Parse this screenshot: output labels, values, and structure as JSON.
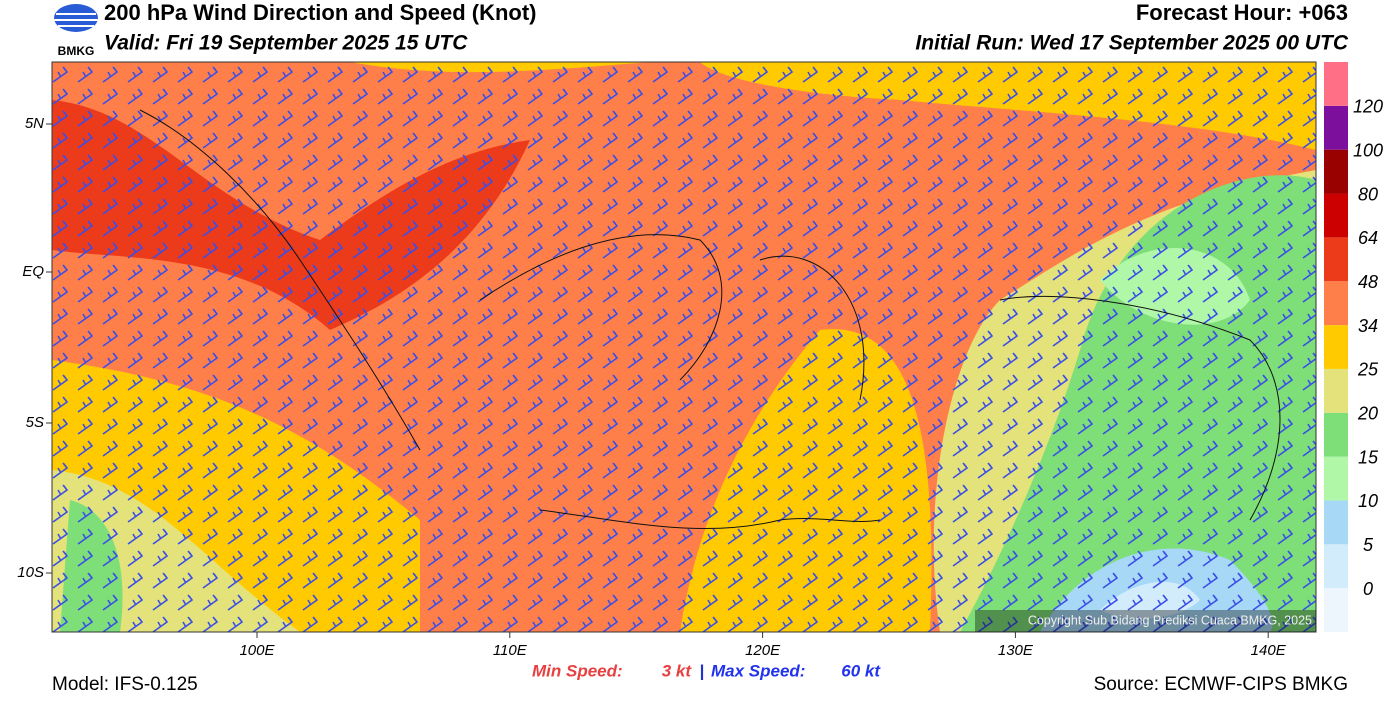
{
  "header": {
    "logo": "BMKG",
    "title": "200 hPa Wind Direction and Speed (Knot)",
    "valid": "Valid: Fri 19 September 2025 15 UTC",
    "forecast_hour": "Forecast Hour: +063",
    "initial_run": "Initial Run: Wed 17 September 2025 00 UTC"
  },
  "map": {
    "lat_labels": [
      "5N",
      "EQ",
      "5S",
      "10S"
    ],
    "lon_labels": [
      "100E",
      "110E",
      "120E",
      "130E",
      "140E"
    ],
    "copyright": "Copyright Sub Bidang Prediksi Cuaca BMKG, 2025"
  },
  "colorbar": {
    "levels": [
      0,
      5,
      10,
      15,
      20,
      25,
      34,
      48,
      64,
      80,
      100,
      120
    ],
    "colors": [
      "#eef6fd",
      "#d2ecfb",
      "#a7d8f6",
      "#b0f8a8",
      "#7ede78",
      "#e4e27a",
      "#ffcb00",
      "#ff7f4a",
      "#ec3b1b",
      "#cc0000",
      "#990000",
      "#7c0f9c",
      "#ff6f86"
    ]
  },
  "footer": {
    "min_label": "Min Speed:",
    "min_value": "3 kt",
    "separator": "|",
    "max_label": "Max Speed:",
    "max_value": "60 kt",
    "model": "Model: IFS-0.125",
    "source": "Source: ECMWF-CIPS BMKG"
  }
}
